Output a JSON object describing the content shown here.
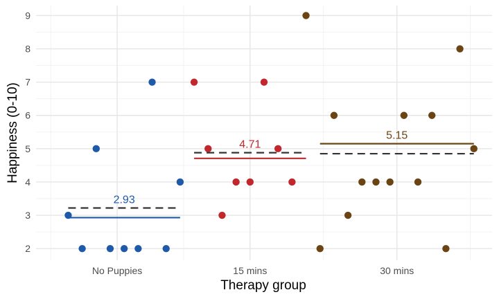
{
  "chart_data": {
    "type": "scatter",
    "title": "",
    "xlabel": "Therapy group",
    "ylabel": "Happiness (0-10)",
    "x_domain": [
      -1.3,
      31.3
    ],
    "ylim": [
      1.65,
      9.3
    ],
    "grid": true,
    "legend": "none",
    "x_ticks": [
      {
        "value": 4.5,
        "label": "No Puppies"
      },
      {
        "value": 14,
        "label": "15 mins"
      },
      {
        "value": 24.5,
        "label": "30 mins"
      }
    ],
    "x_minor_ticks": [
      -0.25,
      9.25,
      19.25,
      29.75
    ],
    "y_ticks": [
      2,
      3,
      4,
      5,
      6,
      7,
      8,
      9
    ],
    "y_minor_ticks": [
      2.5,
      3.5,
      4.5,
      5.5,
      6.5,
      7.5,
      8.5
    ],
    "series": [
      {
        "name": "No Puppies",
        "color": "#1f5aa8",
        "x": [
          1,
          2,
          3,
          4,
          5,
          6,
          7,
          8,
          9
        ],
        "y": [
          3,
          2,
          5,
          2,
          2,
          2,
          7,
          2,
          4
        ],
        "group_mean": 3.22,
        "model_estimate": 2.93,
        "model_estimate_label": "2.93",
        "line_range": [
          1,
          9
        ]
      },
      {
        "name": "15 mins",
        "color": "#c0282d",
        "x": [
          10,
          11,
          12,
          13,
          14,
          15,
          16,
          17
        ],
        "y": [
          7,
          5,
          3,
          4,
          4,
          7,
          5,
          4
        ],
        "group_mean": 4.88,
        "model_estimate": 4.71,
        "model_estimate_label": "4.71",
        "line_range": [
          10,
          18
        ]
      },
      {
        "name": "30 mins",
        "color": "#6b4414",
        "x": [
          18,
          19,
          20,
          21,
          22,
          23,
          24,
          25,
          26,
          27,
          28,
          29,
          30
        ],
        "y": [
          9,
          2,
          6,
          3,
          4,
          4,
          4,
          6,
          4,
          6,
          2,
          8,
          5
        ],
        "group_mean": 4.85,
        "model_estimate": 5.15,
        "model_estimate_label": "5.15",
        "line_range": [
          19,
          30
        ]
      }
    ],
    "mean_line_color": "#333333",
    "annotations": [
      "2.93",
      "4.71",
      "5.15"
    ]
  }
}
